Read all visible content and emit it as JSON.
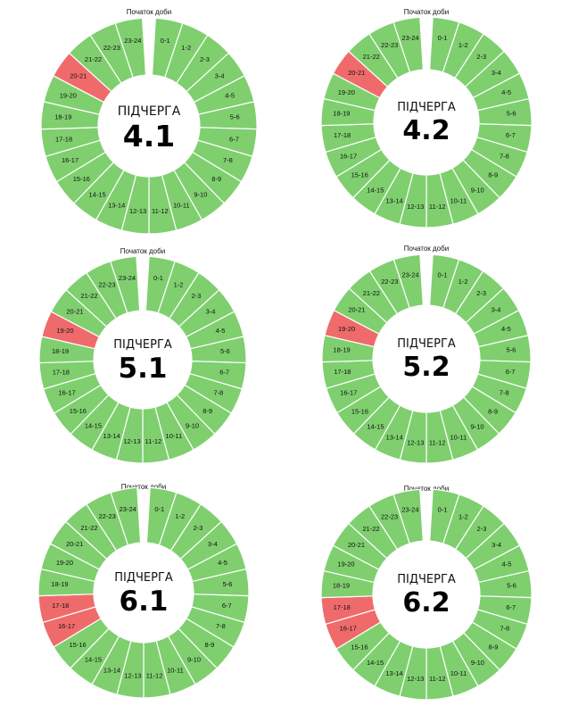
{
  "start_label": "Початок доби",
  "center_label": "ПІДЧЕРГА",
  "colors": {
    "on": "#7fcf6f",
    "off": "#ef6b6b",
    "stroke": "#ffffff"
  },
  "chart_data": [
    {
      "type": "pie",
      "subtitle": "4.1",
      "categories": [
        "0-1",
        "1-2",
        "2-3",
        "3-4",
        "4-5",
        "5-6",
        "6-7",
        "7-8",
        "8-9",
        "9-10",
        "10-11",
        "11-12",
        "12-13",
        "13-14",
        "14-15",
        "15-16",
        "16-17",
        "17-18",
        "18-19",
        "19-20",
        "20-21",
        "21-22",
        "22-23",
        "23-24"
      ],
      "outage_hours": [
        "20-21"
      ]
    },
    {
      "type": "pie",
      "subtitle": "4.2",
      "categories": [
        "0-1",
        "1-2",
        "2-3",
        "3-4",
        "4-5",
        "5-6",
        "6-7",
        "7-8",
        "8-9",
        "9-10",
        "10-11",
        "11-12",
        "12-13",
        "13-14",
        "14-15",
        "15-16",
        "16-17",
        "17-18",
        "18-19",
        "19-20",
        "20-21",
        "21-22",
        "22-23",
        "23-24"
      ],
      "outage_hours": [
        "20-21"
      ]
    },
    {
      "type": "pie",
      "subtitle": "5.1",
      "categories": [
        "0-1",
        "1-2",
        "2-3",
        "3-4",
        "4-5",
        "5-6",
        "6-7",
        "7-8",
        "8-9",
        "9-10",
        "10-11",
        "11-12",
        "12-13",
        "13-14",
        "14-15",
        "15-16",
        "16-17",
        "17-18",
        "18-19",
        "19-20",
        "20-21",
        "21-22",
        "22-23",
        "23-24"
      ],
      "outage_hours": [
        "19-20"
      ]
    },
    {
      "type": "pie",
      "subtitle": "5.2",
      "categories": [
        "0-1",
        "1-2",
        "2-3",
        "3-4",
        "4-5",
        "5-6",
        "6-7",
        "7-8",
        "8-9",
        "9-10",
        "10-11",
        "11-12",
        "12-13",
        "13-14",
        "14-15",
        "15-16",
        "16-17",
        "17-18",
        "18-19",
        "19-20",
        "20-21",
        "21-22",
        "22-23",
        "23-24"
      ],
      "outage_hours": [
        "19-20"
      ]
    },
    {
      "type": "pie",
      "subtitle": "6.1",
      "categories": [
        "0-1",
        "1-2",
        "2-3",
        "3-4",
        "4-5",
        "5-6",
        "6-7",
        "7-8",
        "8-9",
        "9-10",
        "10-11",
        "11-12",
        "12-13",
        "13-14",
        "14-15",
        "15-16",
        "16-17",
        "17-18",
        "18-19",
        "19-20",
        "20-21",
        "21-22",
        "22-23",
        "23-24"
      ],
      "outage_hours": [
        "16-17",
        "17-18"
      ]
    },
    {
      "type": "pie",
      "subtitle": "6.2",
      "categories": [
        "0-1",
        "1-2",
        "2-3",
        "3-4",
        "4-5",
        "5-6",
        "6-7",
        "7-8",
        "8-9",
        "9-10",
        "10-11",
        "11-12",
        "12-13",
        "13-14",
        "14-15",
        "15-16",
        "16-17",
        "17-18",
        "18-19",
        "19-20",
        "20-21",
        "21-22",
        "22-23",
        "23-24"
      ],
      "outage_hours": [
        "16-17",
        "17-18"
      ]
    }
  ]
}
